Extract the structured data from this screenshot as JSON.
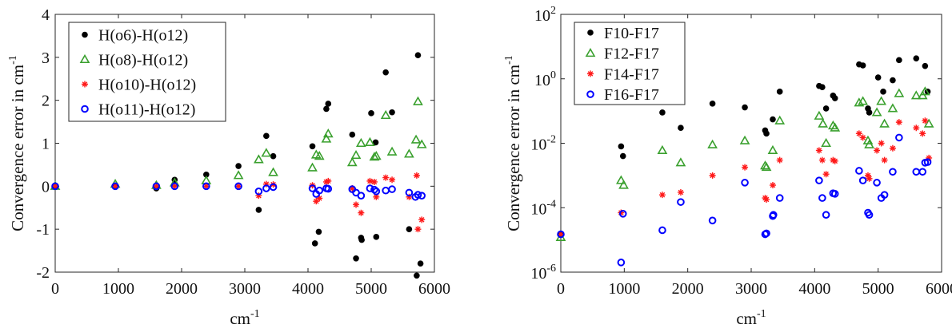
{
  "colors": {
    "series_black": "#000000",
    "series_green": "#3aa02e",
    "series_red": "#ff1a1a",
    "series_blue": "#0000ff"
  },
  "chart_data": [
    {
      "type": "scatter",
      "title": "",
      "xlabel": "cm",
      "xlabel_sup": "-1",
      "ylabel": "Convergence error in cm",
      "ylabel_sup": "-1",
      "xlim": [
        0,
        6000
      ],
      "ylim": [
        -2,
        4
      ],
      "yscale": "linear",
      "xticks": [
        0,
        1000,
        2000,
        3000,
        4000,
        5000,
        6000
      ],
      "yticks": [
        -2,
        -1,
        0,
        1,
        2,
        3,
        4
      ],
      "grid": false,
      "legend_position": "top-left",
      "series": [
        {
          "name": "H(o6)-H(o12)",
          "marker": "dot",
          "color": "#000000",
          "points": [
            [
              0,
              0
            ],
            [
              950,
              0
            ],
            [
              1600,
              -0.05
            ],
            [
              1890,
              0.15
            ],
            [
              2390,
              0.27
            ],
            [
              2900,
              0.47
            ],
            [
              3220,
              -0.55
            ],
            [
              3340,
              1.17
            ],
            [
              3450,
              0.7
            ],
            [
              4070,
              0.93
            ],
            [
              4110,
              -1.33
            ],
            [
              4170,
              -1.06
            ],
            [
              4290,
              1.8
            ],
            [
              4320,
              1.92
            ],
            [
              4700,
              1.2
            ],
            [
              4760,
              -1.68
            ],
            [
              4840,
              -1.2
            ],
            [
              4850,
              -1.25
            ],
            [
              5000,
              1.7
            ],
            [
              5070,
              1.02
            ],
            [
              5080,
              -1.18
            ],
            [
              5230,
              2.65
            ],
            [
              5330,
              1.72
            ],
            [
              5600,
              -1.0
            ],
            [
              5740,
              3.05
            ],
            [
              5720,
              -2.08
            ],
            [
              5780,
              -1.8
            ]
          ]
        },
        {
          "name": "H(o8)-H(o12)",
          "marker": "triangle",
          "color": "#3aa02e",
          "points": [
            [
              0,
              0
            ],
            [
              950,
              0.05
            ],
            [
              1600,
              0.02
            ],
            [
              1890,
              0.08
            ],
            [
              2390,
              0.13
            ],
            [
              2900,
              0.25
            ],
            [
              3220,
              0.62
            ],
            [
              3340,
              0.77
            ],
            [
              3450,
              0.32
            ],
            [
              4070,
              0.43
            ],
            [
              4130,
              0.73
            ],
            [
              4180,
              0.7
            ],
            [
              4290,
              1.1
            ],
            [
              4320,
              1.22
            ],
            [
              4700,
              0.55
            ],
            [
              4760,
              0.72
            ],
            [
              4840,
              1.0
            ],
            [
              4980,
              1.02
            ],
            [
              5050,
              0.68
            ],
            [
              5080,
              0.7
            ],
            [
              5230,
              1.65
            ],
            [
              5330,
              0.8
            ],
            [
              5600,
              0.75
            ],
            [
              5710,
              1.08
            ],
            [
              5740,
              1.97
            ],
            [
              5800,
              0.97
            ]
          ]
        },
        {
          "name": "H(o10)-H(o12)",
          "marker": "asterisk",
          "color": "#ff1a1a",
          "points": [
            [
              0,
              0
            ],
            [
              950,
              0
            ],
            [
              1600,
              0
            ],
            [
              1890,
              0
            ],
            [
              2390,
              0
            ],
            [
              2900,
              0
            ],
            [
              3220,
              -0.22
            ],
            [
              3340,
              0.05
            ],
            [
              3450,
              0.04
            ],
            [
              4070,
              0.02
            ],
            [
              4130,
              -0.35
            ],
            [
              4180,
              -0.28
            ],
            [
              4290,
              0.1
            ],
            [
              4320,
              0.12
            ],
            [
              4700,
              -0.05
            ],
            [
              4760,
              -0.43
            ],
            [
              4840,
              -0.62
            ],
            [
              4980,
              0.12
            ],
            [
              5050,
              0.1
            ],
            [
              5080,
              -0.25
            ],
            [
              5230,
              0.2
            ],
            [
              5330,
              0.15
            ],
            [
              5600,
              -0.25
            ],
            [
              5720,
              0.25
            ],
            [
              5740,
              -1.0
            ],
            [
              5800,
              -0.78
            ]
          ]
        },
        {
          "name": "H(o11)-H(o12)",
          "marker": "circle",
          "color": "#0000ff",
          "points": [
            [
              0,
              0
            ],
            [
              950,
              0
            ],
            [
              1600,
              0
            ],
            [
              1890,
              0
            ],
            [
              2390,
              0
            ],
            [
              2900,
              0
            ],
            [
              3220,
              -0.12
            ],
            [
              3340,
              -0.05
            ],
            [
              3450,
              -0.02
            ],
            [
              4070,
              -0.05
            ],
            [
              4130,
              -0.18
            ],
            [
              4180,
              -0.1
            ],
            [
              4290,
              -0.05
            ],
            [
              4320,
              -0.06
            ],
            [
              4700,
              -0.07
            ],
            [
              4760,
              -0.15
            ],
            [
              4840,
              -0.22
            ],
            [
              4980,
              -0.05
            ],
            [
              5050,
              -0.08
            ],
            [
              5080,
              -0.12
            ],
            [
              5230,
              -0.1
            ],
            [
              5330,
              -0.07
            ],
            [
              5600,
              -0.15
            ],
            [
              5700,
              -0.25
            ],
            [
              5740,
              -0.2
            ],
            [
              5800,
              -0.22
            ]
          ]
        }
      ]
    },
    {
      "type": "scatter",
      "title": "",
      "xlabel": "cm",
      "xlabel_sup": "-1",
      "ylabel": "Convergence error in cm",
      "ylabel_sup": "-1",
      "xlim": [
        0,
        6000
      ],
      "ylim": [
        1e-06,
        100
      ],
      "yscale": "log",
      "xticks": [
        0,
        1000,
        2000,
        3000,
        4000,
        5000,
        6000
      ],
      "yticks": [
        1e-06,
        0.0001,
        0.01,
        1,
        100
      ],
      "ytick_labels": [
        {
          "base": "10",
          "exp": "-6"
        },
        {
          "base": "10",
          "exp": "-4"
        },
        {
          "base": "10",
          "exp": "-2"
        },
        {
          "base": "10",
          "exp": "0"
        },
        {
          "base": "10",
          "exp": "2"
        }
      ],
      "grid": false,
      "legend_position": "top-left",
      "series": [
        {
          "name": "F10-F17",
          "marker": "dot",
          "color": "#000000",
          "points": [
            [
              0,
              1.5e-05
            ],
            [
              950,
              0.008
            ],
            [
              980,
              0.004
            ],
            [
              1600,
              0.09
            ],
            [
              1890,
              0.03
            ],
            [
              2390,
              0.17
            ],
            [
              2900,
              0.13
            ],
            [
              3220,
              0.025
            ],
            [
              3240,
              0.02
            ],
            [
              3340,
              0.055
            ],
            [
              3450,
              0.4
            ],
            [
              4070,
              0.6
            ],
            [
              4120,
              0.55
            ],
            [
              4180,
              0.12
            ],
            [
              4290,
              0.3
            ],
            [
              4320,
              0.25
            ],
            [
              4700,
              2.8
            ],
            [
              4760,
              2.6
            ],
            [
              4840,
              0.12
            ],
            [
              4860,
              0.09
            ],
            [
              5000,
              1.1
            ],
            [
              5080,
              0.4
            ],
            [
              5230,
              0.9
            ],
            [
              5330,
              3.8
            ],
            [
              5600,
              4.3
            ],
            [
              5740,
              2.5
            ],
            [
              5780,
              0.4
            ]
          ]
        },
        {
          "name": "F12-F17",
          "marker": "triangle",
          "color": "#3aa02e",
          "points": [
            [
              0,
              1.2e-05
            ],
            [
              950,
              0.0007
            ],
            [
              990,
              0.0005
            ],
            [
              1600,
              0.006
            ],
            [
              1890,
              0.0025
            ],
            [
              2390,
              0.009
            ],
            [
              2900,
              0.012
            ],
            [
              3220,
              0.002
            ],
            [
              3240,
              0.0018
            ],
            [
              3340,
              0.006
            ],
            [
              3450,
              0.05
            ],
            [
              4070,
              0.07
            ],
            [
              4130,
              0.04
            ],
            [
              4180,
              0.01
            ],
            [
              4290,
              0.035
            ],
            [
              4320,
              0.03
            ],
            [
              4700,
              0.18
            ],
            [
              4760,
              0.2
            ],
            [
              4840,
              0.012
            ],
            [
              4860,
              0.009
            ],
            [
              4980,
              0.09
            ],
            [
              5050,
              0.2
            ],
            [
              5100,
              0.04
            ],
            [
              5230,
              0.12
            ],
            [
              5330,
              0.35
            ],
            [
              5600,
              0.3
            ],
            [
              5700,
              0.3
            ],
            [
              5740,
              0.4
            ],
            [
              5800,
              0.04
            ]
          ]
        },
        {
          "name": "F14-F17",
          "marker": "asterisk",
          "color": "#ff1a1a",
          "points": [
            [
              0,
              1.5e-05
            ],
            [
              950,
              7e-05
            ],
            [
              1600,
              0.00025
            ],
            [
              1890,
              0.0003
            ],
            [
              2390,
              0.001
            ],
            [
              2900,
              0.0018
            ],
            [
              3220,
              0.0002
            ],
            [
              3240,
              0.00018
            ],
            [
              3340,
              0.0005
            ],
            [
              3450,
              0.003
            ],
            [
              4070,
              0.006
            ],
            [
              4120,
              0.003
            ],
            [
              4180,
              0.0011
            ],
            [
              4290,
              0.003
            ],
            [
              4320,
              0.0028
            ],
            [
              4700,
              0.02
            ],
            [
              4760,
              0.015
            ],
            [
              4840,
              0.001
            ],
            [
              4860,
              0.0008
            ],
            [
              4980,
              0.006
            ],
            [
              5050,
              0.01
            ],
            [
              5100,
              0.003
            ],
            [
              5230,
              0.007
            ],
            [
              5330,
              0.045
            ],
            [
              5600,
              0.03
            ],
            [
              5700,
              0.02
            ],
            [
              5740,
              0.05
            ],
            [
              5800,
              0.0035
            ]
          ]
        },
        {
          "name": "F16-F17",
          "marker": "circle",
          "color": "#0000ff",
          "points": [
            [
              0,
              1.5e-05
            ],
            [
              950,
              2e-06
            ],
            [
              980,
              6.5e-05
            ],
            [
              1600,
              2e-05
            ],
            [
              1890,
              0.00015
            ],
            [
              2390,
              4e-05
            ],
            [
              2900,
              0.0006
            ],
            [
              3220,
              1.5e-05
            ],
            [
              3240,
              1.6e-05
            ],
            [
              3340,
              5.5e-05
            ],
            [
              3350,
              6e-05
            ],
            [
              3450,
              0.0002
            ],
            [
              4070,
              0.0007
            ],
            [
              4120,
              0.0002
            ],
            [
              4180,
              6e-05
            ],
            [
              4290,
              0.00028
            ],
            [
              4320,
              0.00027
            ],
            [
              4700,
              0.0014
            ],
            [
              4760,
              0.0007
            ],
            [
              4840,
              7e-05
            ],
            [
              4860,
              6e-05
            ],
            [
              4980,
              0.0006
            ],
            [
              5050,
              0.0002
            ],
            [
              5100,
              0.00025
            ],
            [
              5230,
              0.0013
            ],
            [
              5330,
              0.015
            ],
            [
              5600,
              0.0013
            ],
            [
              5700,
              0.0013
            ],
            [
              5740,
              0.0025
            ],
            [
              5780,
              0.0026
            ]
          ]
        }
      ]
    }
  ]
}
